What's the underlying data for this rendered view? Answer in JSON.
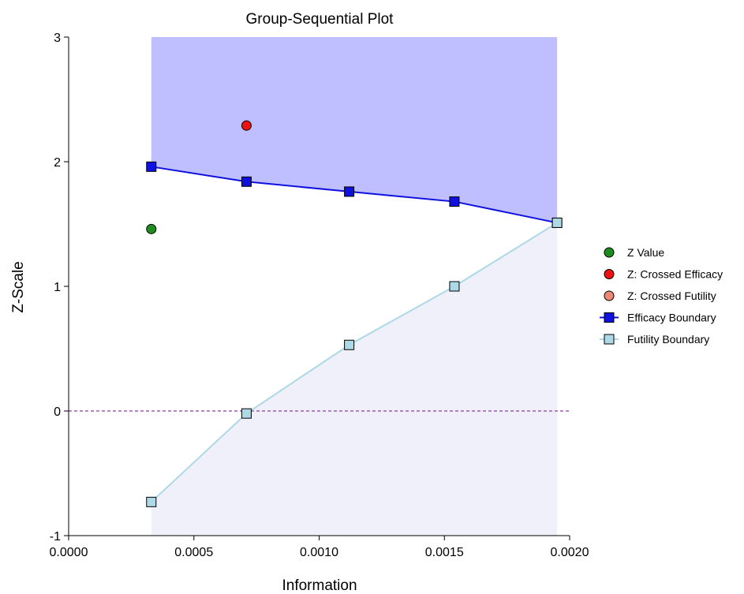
{
  "chart_data": {
    "type": "line",
    "title": "Group-Sequential Plot",
    "xlabel": "Information",
    "ylabel": "Z-Scale",
    "xlim": [
      0.0,
      0.002
    ],
    "ylim": [
      -1,
      3
    ],
    "x_ticks": [
      0.0,
      0.0005,
      0.001,
      0.0015,
      0.002
    ],
    "x_tick_labels": [
      "0.0000",
      "0.0005",
      "0.0010",
      "0.0015",
      "0.0020"
    ],
    "y_ticks": [
      -1,
      0,
      1,
      2,
      3
    ],
    "y_tick_labels": [
      "-1",
      "0",
      "1",
      "2",
      "3"
    ],
    "grid": false,
    "legend_position": "right",
    "reference_line": {
      "y": 0,
      "style": "dashed",
      "color": "#8b3a9a"
    },
    "regions": {
      "efficacy_color": "#bfbfff",
      "futility_color": "#f0f0fa"
    },
    "series": [
      {
        "name": "Z Value",
        "kind": "points",
        "marker": "circle",
        "color": "#1e8c1e",
        "x": [
          0.00033
        ],
        "y": [
          1.46
        ]
      },
      {
        "name": "Z: Crossed Efficacy",
        "kind": "points",
        "marker": "circle",
        "color": "#ee1111",
        "x": [
          0.00071
        ],
        "y": [
          2.29
        ]
      },
      {
        "name": "Z: Crossed Futility",
        "kind": "points",
        "marker": "circle",
        "color": "#f08878",
        "x": [],
        "y": []
      },
      {
        "name": "Efficacy Boundary",
        "kind": "line-markers",
        "marker": "square",
        "color": "#1010e0",
        "x": [
          0.00033,
          0.00071,
          0.00112,
          0.00154,
          0.00195
        ],
        "y": [
          1.96,
          1.84,
          1.76,
          1.68,
          1.51
        ]
      },
      {
        "name": "Futility Boundary",
        "kind": "line-markers",
        "marker": "square",
        "color": "#add8e6",
        "x": [
          0.00033,
          0.00071,
          0.00112,
          0.00154,
          0.00195
        ],
        "y": [
          -0.73,
          -0.02,
          0.53,
          1.0,
          1.51
        ]
      }
    ]
  }
}
